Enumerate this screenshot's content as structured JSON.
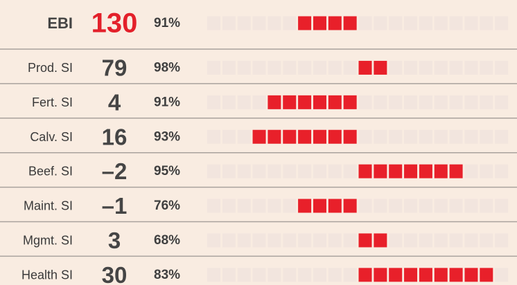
{
  "rows": [
    {
      "label": "EBI",
      "value": "130",
      "reliability": "91%",
      "blocks": -4
    },
    {
      "label": "Prod. SI",
      "value": "79",
      "reliability": "98%",
      "blocks": 2
    },
    {
      "label": "Fert. SI",
      "value": "4",
      "reliability": "91%",
      "blocks": -6
    },
    {
      "label": "Calv. SI",
      "value": "16",
      "reliability": "93%",
      "blocks": -7
    },
    {
      "label": "Beef. SI",
      "value": "–2",
      "reliability": "95%",
      "blocks": 7
    },
    {
      "label": "Maint. SI",
      "value": "–1",
      "reliability": "76%",
      "blocks": -4
    },
    {
      "label": "Mgmt. SI",
      "value": "3",
      "reliability": "68%",
      "blocks": 2
    },
    {
      "label": "Health SI",
      "value": "30",
      "reliability": "83%",
      "blocks": 9
    }
  ]
}
